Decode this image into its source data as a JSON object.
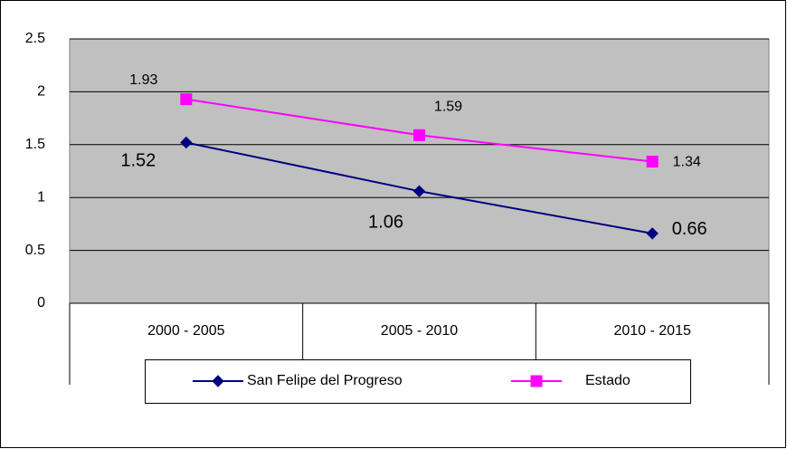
{
  "chart_data": {
    "type": "line",
    "categories": [
      "2000 - 2005",
      "2005 - 2010",
      "2010 - 2015"
    ],
    "series": [
      {
        "name": "San Felipe del Progreso",
        "color": "#000080",
        "marker": "diamond",
        "values": [
          1.52,
          1.06,
          0.66
        ]
      },
      {
        "name": "Estado",
        "color": "#ff00ff",
        "marker": "square",
        "values": [
          1.93,
          1.59,
          1.34
        ]
      }
    ],
    "ylim": [
      0,
      2.5
    ],
    "yticks": [
      0,
      0.5,
      1,
      1.5,
      2,
      2.5
    ],
    "grid": true,
    "legend": "bottom"
  }
}
